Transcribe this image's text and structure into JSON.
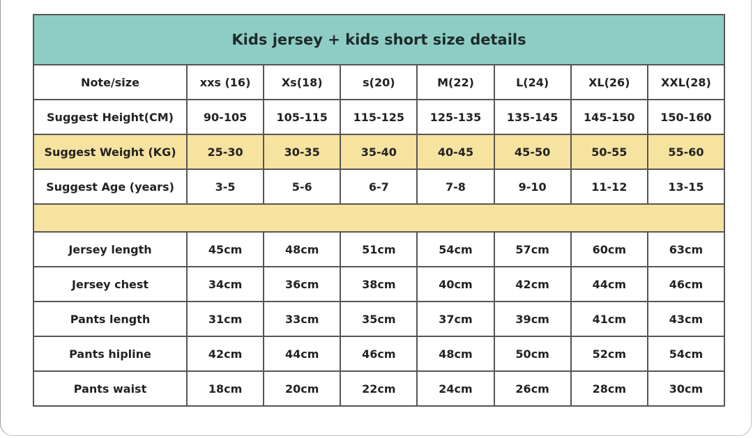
{
  "title": "Kids jersey + kids short size details",
  "colors": {
    "header_bg": "#8ecdc6",
    "highlight_bg": "#f6e3a0",
    "border": "#555555"
  },
  "header": {
    "label": "Note/size",
    "sizes": [
      "xxs (16)",
      "Xs(18)",
      "s(20)",
      "M(22)",
      "L(24)",
      "XL(26)",
      "XXL(28)"
    ]
  },
  "rows_top": [
    {
      "label": "Suggest Height(CM)",
      "values": [
        "90-105",
        "105-115",
        "115-125",
        "125-135",
        "135-145",
        "145-150",
        "150-160"
      ],
      "highlight": false
    },
    {
      "label": "Suggest Weight (KG)",
      "values": [
        "25-30",
        "30-35",
        "35-40",
        "40-45",
        "45-50",
        "50-55",
        "55-60"
      ],
      "highlight": true
    },
    {
      "label": "Suggest Age (years)",
      "values": [
        "3-5",
        "5-6",
        "6-7",
        "7-8",
        "9-10",
        "11-12",
        "13-15"
      ],
      "highlight": false
    }
  ],
  "rows_bottom": [
    {
      "label": "Jersey length",
      "values": [
        "45cm",
        "48cm",
        "51cm",
        "54cm",
        "57cm",
        "60cm",
        "63cm"
      ]
    },
    {
      "label": "Jersey chest",
      "values": [
        "34cm",
        "36cm",
        "38cm",
        "40cm",
        "42cm",
        "44cm",
        "46cm"
      ]
    },
    {
      "label": "Pants length",
      "values": [
        "31cm",
        "33cm",
        "35cm",
        "37cm",
        "39cm",
        "41cm",
        "43cm"
      ]
    },
    {
      "label": "Pants hipline",
      "values": [
        "42cm",
        "44cm",
        "46cm",
        "48cm",
        "50cm",
        "52cm",
        "54cm"
      ]
    },
    {
      "label": "Pants waist",
      "values": [
        "18cm",
        "20cm",
        "22cm",
        "24cm",
        "26cm",
        "28cm",
        "30cm"
      ]
    }
  ]
}
